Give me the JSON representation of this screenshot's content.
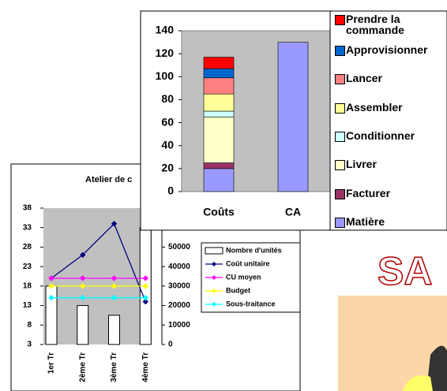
{
  "chart_data": [
    {
      "type": "stacked-bar",
      "categories": [
        "Coûts",
        "CA"
      ],
      "ylim": [
        0,
        140
      ],
      "yticks": [
        0,
        20,
        40,
        60,
        80,
        100,
        120,
        140
      ],
      "series": [
        {
          "name": "Prendre la commande",
          "color": "#ff0000",
          "values": [
            10,
            null
          ]
        },
        {
          "name": "Approvisionner",
          "color": "#0066cc",
          "values": [
            8,
            null
          ]
        },
        {
          "name": "Lancer",
          "color": "#ff8080",
          "values": [
            14,
            null
          ]
        },
        {
          "name": "Assembler",
          "color": "#ffff99",
          "values": [
            15,
            null
          ]
        },
        {
          "name": "Conditionner",
          "color": "#ccffff",
          "values": [
            5,
            null
          ]
        },
        {
          "name": "Livrer",
          "color": "#ffffcc",
          "values": [
            40,
            null
          ]
        },
        {
          "name": "Facturer",
          "color": "#993366",
          "values": [
            5,
            null
          ]
        },
        {
          "name": "Matière",
          "color": "#9999ff",
          "values": [
            20,
            130
          ]
        }
      ]
    },
    {
      "type": "combo",
      "title": "Atelier de c",
      "categories": [
        "1er Tr",
        "2ème Tr",
        "3ème Tr",
        "4ème Tr"
      ],
      "ylim": [
        3,
        38
      ],
      "yticks": [
        3,
        8,
        13,
        18,
        23,
        28,
        33,
        38
      ],
      "y2lim": [
        0,
        70000
      ],
      "y2ticks": [
        0,
        10000,
        20000,
        30000,
        40000,
        50000
      ],
      "series": [
        {
          "name": "Nombre d'unités",
          "type": "bar",
          "axis": "y2",
          "color": "#ffffff",
          "values": [
            30000,
            20000,
            15000,
            60000
          ]
        },
        {
          "name": "Coût unitaire",
          "type": "line",
          "color": "#000080",
          "values": [
            20,
            26,
            34,
            14
          ]
        },
        {
          "name": "CU moyen",
          "type": "line",
          "color": "#ff00ff",
          "values": [
            20,
            20,
            20,
            20
          ]
        },
        {
          "name": "Budget",
          "type": "line",
          "color": "#ffff00",
          "values": [
            18,
            18,
            18,
            18
          ]
        },
        {
          "name": "Sous-traitance",
          "type": "line",
          "color": "#00ffff",
          "values": [
            15,
            15,
            15,
            15
          ]
        }
      ]
    }
  ],
  "slide": {
    "text": "SA"
  }
}
